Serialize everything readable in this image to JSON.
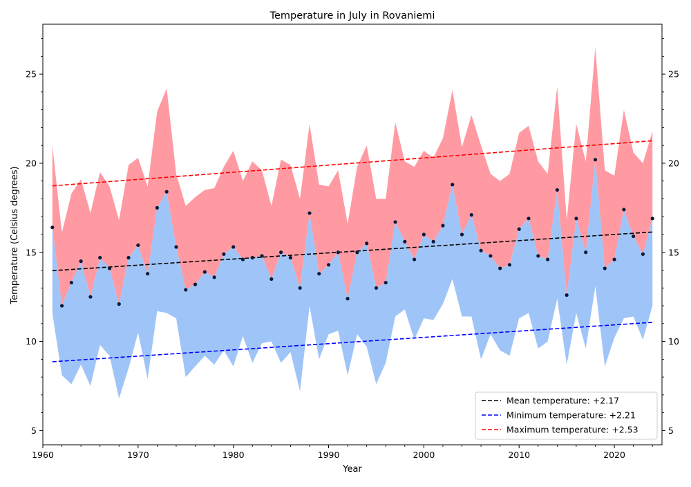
{
  "chart_data": {
    "type": "area",
    "title": "Temperature in July in Rovaniemi",
    "xlabel": "Year",
    "ylabel": "Temperature (Celsius degrees)",
    "xlim": [
      1960,
      2025
    ],
    "ylim": [
      4.2,
      27.8
    ],
    "x_ticks": [
      1960,
      1970,
      1980,
      1990,
      2000,
      2010,
      2020
    ],
    "y_ticks": [
      5,
      10,
      15,
      20,
      25
    ],
    "legend_position": "bottom-right",
    "years": [
      1961,
      1962,
      1963,
      1964,
      1965,
      1966,
      1967,
      1968,
      1969,
      1970,
      1971,
      1972,
      1973,
      1974,
      1975,
      1976,
      1977,
      1978,
      1979,
      1980,
      1981,
      1982,
      1983,
      1984,
      1985,
      1986,
      1987,
      1988,
      1989,
      1990,
      1991,
      1992,
      1993,
      1994,
      1995,
      1996,
      1997,
      1998,
      1999,
      2000,
      2001,
      2002,
      2003,
      2004,
      2005,
      2006,
      2007,
      2008,
      2009,
      2010,
      2011,
      2012,
      2013,
      2014,
      2015,
      2016,
      2017,
      2018,
      2019,
      2020,
      2021,
      2022,
      2023,
      2024
    ],
    "max": [
      21.0,
      16.1,
      18.3,
      19.1,
      17.2,
      19.5,
      18.7,
      16.8,
      19.9,
      20.3,
      18.7,
      22.9,
      24.2,
      19.4,
      17.6,
      18.1,
      18.5,
      18.6,
      19.8,
      20.7,
      19.0,
      20.1,
      19.6,
      17.6,
      20.2,
      19.9,
      18.0,
      22.2,
      18.8,
      18.7,
      19.6,
      16.6,
      19.8,
      21.0,
      18.0,
      18.0,
      22.3,
      20.1,
      19.8,
      20.7,
      20.3,
      21.4,
      24.1,
      20.9,
      22.7,
      21.0,
      19.4,
      19.0,
      19.4,
      21.7,
      22.1,
      20.1,
      19.4,
      24.3,
      16.8,
      22.2,
      20.1,
      26.5,
      19.6,
      19.3,
      23.0,
      20.6,
      20.0,
      21.8
    ],
    "mean": [
      16.4,
      12.0,
      13.3,
      14.5,
      12.5,
      14.7,
      14.1,
      12.1,
      14.7,
      15.4,
      13.8,
      17.5,
      18.4,
      15.3,
      12.9,
      13.2,
      13.9,
      13.6,
      14.9,
      15.3,
      14.6,
      14.7,
      14.8,
      13.5,
      15.0,
      14.7,
      13.0,
      17.2,
      13.8,
      14.3,
      15.0,
      12.4,
      15.0,
      15.5,
      13.0,
      13.3,
      16.7,
      15.6,
      14.6,
      16.0,
      15.6,
      16.5,
      18.8,
      16.0,
      17.1,
      15.1,
      14.8,
      14.1,
      14.3,
      16.3,
      16.9,
      14.8,
      14.6,
      18.5,
      12.6,
      16.9,
      15.0,
      20.2,
      14.1,
      14.6,
      17.4,
      15.9,
      14.9,
      16.9
    ],
    "min": [
      11.6,
      8.1,
      7.6,
      8.7,
      7.5,
      9.8,
      9.2,
      6.8,
      8.5,
      10.5,
      7.9,
      11.7,
      11.6,
      11.3,
      8.0,
      8.6,
      9.2,
      8.7,
      9.5,
      8.6,
      10.3,
      8.8,
      9.9,
      10.0,
      8.8,
      9.4,
      7.2,
      12.0,
      9.0,
      10.4,
      10.6,
      8.1,
      10.4,
      9.7,
      7.6,
      8.8,
      11.4,
      11.8,
      10.1,
      11.3,
      11.2,
      12.1,
      13.5,
      11.4,
      11.4,
      9.0,
      10.4,
      9.5,
      9.2,
      11.3,
      11.6,
      9.6,
      10.0,
      12.4,
      8.7,
      11.6,
      9.6,
      13.1,
      8.6,
      10.2,
      11.3,
      11.4,
      10.1,
      12.0
    ],
    "trends": [
      {
        "name": "Mean temperature: +2.17",
        "color": "#000000",
        "start": [
          1961,
          13.97
        ],
        "end": [
          2024,
          16.14
        ]
      },
      {
        "name": "Minimum temperature: +2.21",
        "color": "#0000ff",
        "start": [
          1961,
          8.86
        ],
        "end": [
          2024,
          11.07
        ]
      },
      {
        "name": "Maximum temperature: +2.53",
        "color": "#ff0000",
        "start": [
          1961,
          18.73
        ],
        "end": [
          2024,
          21.26
        ]
      }
    ],
    "colors": {
      "max_fill": "#ff9aa2",
      "min_fill": "#9fc5f8",
      "mean_marker": "#0b1a3a",
      "axis": "#000000"
    }
  }
}
